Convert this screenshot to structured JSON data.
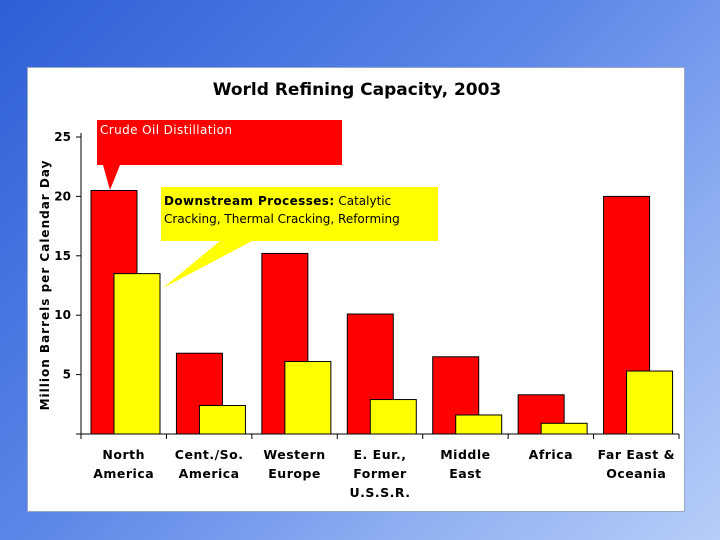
{
  "chart_data": {
    "type": "bar",
    "title": "World Refining Capacity, 2003",
    "xlabel": "",
    "ylabel": "Million Barrels per Calendar Day",
    "ylim": [
      0,
      25
    ],
    "yticks": [
      5,
      10,
      15,
      20,
      25
    ],
    "categories": [
      [
        "North",
        "America"
      ],
      [
        "Cent./So.",
        "America"
      ],
      [
        "Western",
        "Europe"
      ],
      [
        "E. Eur.,",
        "Former",
        "U.S.S.R."
      ],
      [
        "Middle",
        "East"
      ],
      [
        "Africa"
      ],
      [
        "Far East &",
        "Oceania"
      ]
    ],
    "series": [
      {
        "name": "Crude Oil Distillation",
        "color": "#ff0000",
        "values": [
          20.5,
          6.8,
          15.2,
          10.1,
          6.5,
          3.3,
          20.0
        ]
      },
      {
        "name": "Downstream Processes",
        "color": "#ffff00",
        "values": [
          13.5,
          2.4,
          6.1,
          2.9,
          1.6,
          0.9,
          5.3
        ]
      }
    ],
    "annotations": {
      "crude_label": "Crude Oil Distillation",
      "downstream_bold": "Downstream Processes:",
      "downstream_line1_rest": " Catalytic",
      "downstream_line2": "Cracking, Thermal Cracking, Reforming"
    },
    "grid": false,
    "legend": "callouts"
  }
}
